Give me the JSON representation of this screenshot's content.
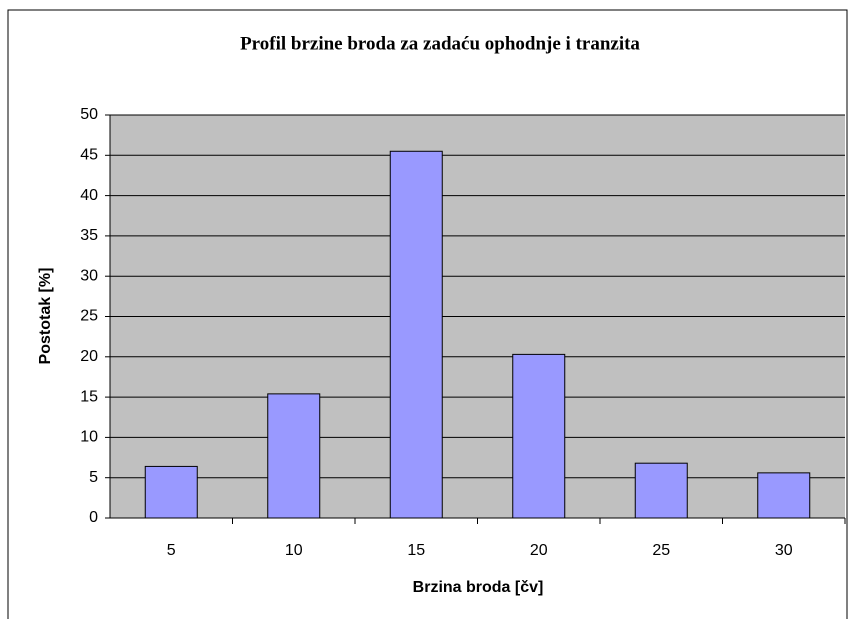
{
  "chart_data": {
    "type": "bar",
    "title": "Profil brzine broda za zadaću ophodnje i tranzita",
    "x_label": "Brzina broda [čv]",
    "y_label": "Postotak [%]",
    "categories": [
      "5",
      "10",
      "15",
      "20",
      "25",
      "30"
    ],
    "values": [
      6.4,
      15.4,
      45.5,
      20.3,
      6.8,
      5.6
    ],
    "color": "#9999ff",
    "ylim": [
      0,
      50
    ],
    "yticks": [
      0,
      5,
      10,
      15,
      20,
      25,
      30,
      35,
      40,
      45,
      50
    ],
    "grid": true
  }
}
